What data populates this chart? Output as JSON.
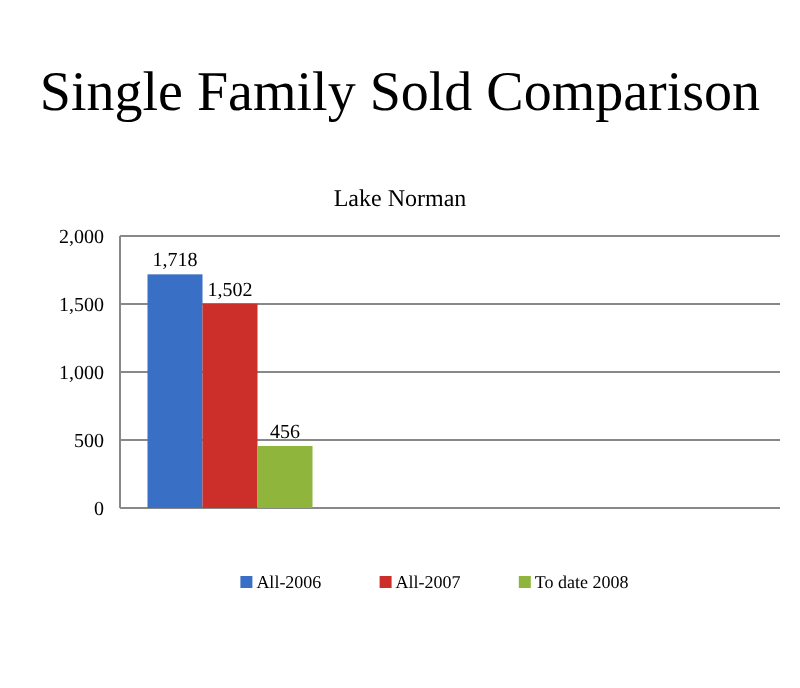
{
  "chart_data": {
    "type": "bar",
    "title": "Single Family Sold Comparison",
    "subtitle": "Lake Norman",
    "categories": [
      null,
      null,
      null
    ],
    "series": [
      {
        "name": "All-2006",
        "color": "#3a6fc6",
        "values": [
          1718,
          null,
          null
        ],
        "value_labels": [
          "1,718",
          null,
          null
        ]
      },
      {
        "name": "All-2007",
        "color": "#cc2f2a",
        "values": [
          1502,
          null,
          null
        ],
        "value_labels": [
          "1,502",
          null,
          null
        ]
      },
      {
        "name": "To date 2008",
        "color": "#8fb53c",
        "values": [
          456,
          null,
          null
        ],
        "value_labels": [
          "456",
          null,
          null
        ]
      }
    ],
    "ylim": [
      0,
      2000
    ],
    "yticks": [
      0,
      {
        "value": 500,
        "label": "500"
      },
      {
        "value": 1000,
        "label": "1,000"
      },
      {
        "value": 1500,
        "label": "1,500"
      },
      {
        "value": 2000,
        "label": "2,000"
      }
    ],
    "grid": "y",
    "legend": "bottom"
  }
}
